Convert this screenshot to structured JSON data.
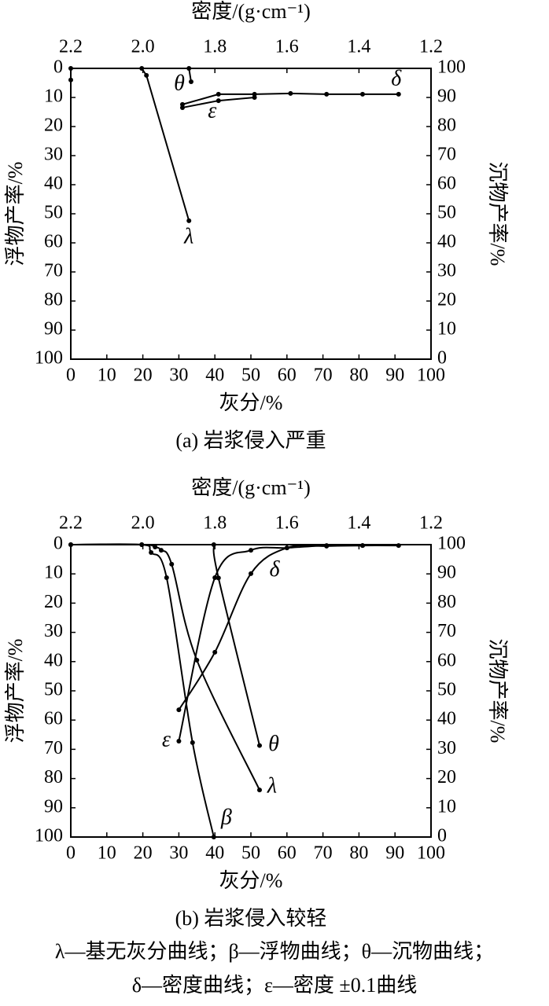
{
  "chart_data": [
    {
      "type": "line",
      "title": "(a) 岩浆侵入严重",
      "xlabel": "灰分/%",
      "x2label": "密度/(g·cm⁻¹)",
      "ylabel": "浮物产率/%",
      "y2label": "沉物产率/%",
      "xlim": [
        0,
        100
      ],
      "xticks": [
        0,
        10,
        20,
        30,
        40,
        50,
        60,
        70,
        80,
        90,
        100
      ],
      "x2lim": [
        2.2,
        1.2
      ],
      "x2ticks": [
        2.2,
        {
          "value": 2,
          "label": "2.0"
        },
        1.8,
        1.6,
        1.4,
        1.2
      ],
      "ylim": [
        0,
        100
      ],
      "y_inverted": true,
      "yticks": [
        0,
        10,
        20,
        30,
        40,
        50,
        60,
        70,
        80,
        90,
        100
      ],
      "y2lim": [
        0,
        100
      ],
      "y2ticks": [
        0,
        10,
        20,
        30,
        40,
        50,
        60,
        70,
        80,
        90,
        100
      ],
      "smooth": false,
      "color": "#000000",
      "series": [
        {
          "name": "λ",
          "x": [
            0,
            0,
            19.7,
            21,
            32.8
          ],
          "values": [
            4,
            0,
            0,
            2.4,
            52.4
          ]
        },
        {
          "name": "θ",
          "axis": "y2",
          "x": [
            32.8,
            33.4
          ],
          "values": [
            100,
            95.4
          ]
        },
        {
          "name": "δ",
          "xaxis": "x2",
          "x": [
            1.89,
            1.79,
            1.69,
            1.59,
            1.49,
            1.39,
            1.29
          ],
          "values": [
            12.4,
            8.9,
            8.9,
            8.6,
            8.9,
            8.9,
            8.9
          ]
        },
        {
          "name": "ε",
          "xaxis": "x2",
          "x": [
            1.89,
            1.79,
            1.69
          ],
          "values": [
            13.5,
            11.1,
            10
          ]
        }
      ]
    },
    {
      "type": "line",
      "title": "(b) 岩浆侵入较轻",
      "xlabel": "灰分/%",
      "x2label": "密度/(g·cm⁻¹)",
      "ylabel": "浮物产率/%",
      "y2label": "沉物产率/%",
      "xlim": [
        0,
        100
      ],
      "xticks": [
        0,
        10,
        20,
        30,
        40,
        50,
        60,
        70,
        80,
        90,
        100
      ],
      "x2lim": [
        2.2,
        1.2
      ],
      "x2ticks": [
        2.2,
        {
          "value": 2,
          "label": "2.0"
        },
        1.8,
        1.6,
        1.4,
        1.2
      ],
      "ylim": [
        0,
        100
      ],
      "y_inverted": true,
      "yticks": [
        0,
        10,
        20,
        30,
        40,
        50,
        60,
        70,
        80,
        90,
        100
      ],
      "y2lim": [
        0,
        100
      ],
      "y2ticks": [
        0,
        10,
        20,
        30,
        40,
        50,
        60,
        70,
        80,
        90,
        100
      ],
      "smooth": true,
      "color": "#000000",
      "series": [
        {
          "name": "λ",
          "x": [
            0,
            19.7,
            23.4,
            25.1,
            28,
            35,
            52.4
          ],
          "values": [
            0,
            0,
            0.8,
            1.9,
            6.7,
            39.5,
            83.9
          ]
        },
        {
          "name": "β",
          "x": [
            0,
            19.7,
            22.3,
            26.6,
            33.8,
            39.7
          ],
          "values": [
            0,
            0,
            2.7,
            11.3,
            67.7,
            100
          ]
        },
        {
          "name": "θ",
          "axis": "y2",
          "x": [
            39.7,
            41,
            52.4
          ],
          "values": [
            100,
            88.6,
            31.3
          ]
        },
        {
          "name": "δ",
          "xaxis": "x2",
          "x": [
            1.9,
            1.8,
            1.7,
            1.6,
            1.49,
            1.39,
            1.29
          ],
          "values": [
            56.5,
            36.8,
            9.9,
            1.1,
            0.5,
            0.3,
            0.3
          ]
        },
        {
          "name": "ε",
          "xaxis": "x2",
          "x": [
            1.9,
            1.8,
            1.7,
            1.6,
            1.49,
            1.39
          ],
          "values": [
            67.2,
            11.3,
            1.9,
            1.1,
            0.3,
            0.3
          ]
        }
      ]
    }
  ],
  "caption": [
    "λ—基无灰分曲线；β—浮物曲线；θ—沉物曲线；",
    "δ—密度曲线；ε—密度 ±0.1曲线"
  ]
}
